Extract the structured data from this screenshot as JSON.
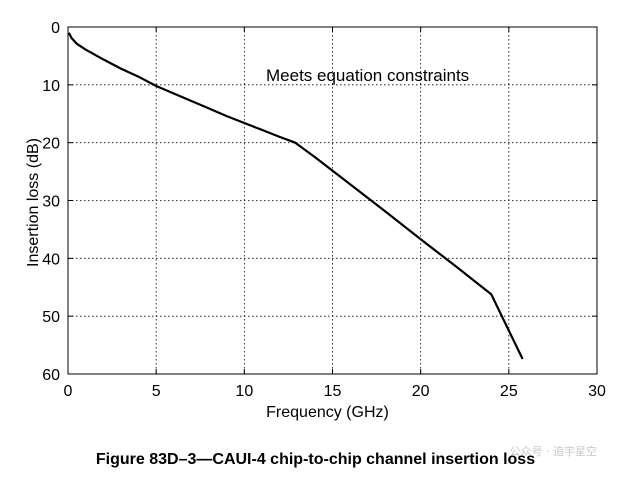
{
  "chart_data": {
    "type": "line",
    "title": "",
    "xlabel": "Frequency (GHz)",
    "ylabel": "Insertion loss (dB)",
    "xlim": [
      0,
      30
    ],
    "ylim": [
      0,
      60
    ],
    "y_axis_inverted": true,
    "x_ticks": [
      0,
      5,
      10,
      15,
      20,
      25,
      30
    ],
    "y_ticks": [
      0,
      10,
      20,
      30,
      40,
      50,
      60
    ],
    "grid": "dotted",
    "annotation": "Meets equation constraints",
    "series": [
      {
        "x": [
          0.05,
          0.2,
          0.5,
          1,
          2,
          3,
          4,
          5,
          6,
          7,
          8,
          9,
          10,
          11,
          12,
          12.89,
          14,
          16,
          18,
          20,
          22,
          24,
          25.78
        ],
        "y": [
          1.0,
          1.9,
          2.9,
          3.9,
          5.6,
          7.2,
          8.6,
          10.2,
          11.5,
          12.8,
          14.1,
          15.4,
          16.6,
          17.8,
          19.0,
          20.0,
          22.5,
          27.2,
          31.9,
          36.7,
          41.4,
          46.2,
          57.4
        ],
        "color": "#000000"
      }
    ]
  },
  "caption": "Figure 83D–3—CAUI-4 chip-to-chip channel insertion loss",
  "watermark": "公众号 · 追宇星空"
}
